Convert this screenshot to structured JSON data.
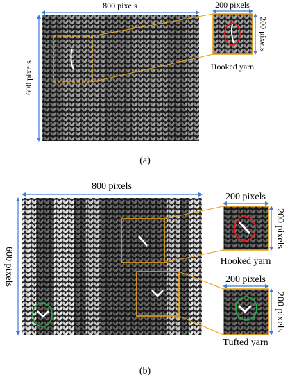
{
  "panels": [
    {
      "label": "(a)",
      "width_label": "800 pixels",
      "height_label": "600 pixels",
      "crops": [
        {
          "width_label": "200 pixels",
          "height_label": "200 pixels",
          "caption": "Hooked yarn"
        }
      ]
    },
    {
      "label": "(b)",
      "width_label": "800 pixels",
      "height_label": "600 pixels",
      "crops": [
        {
          "width_label": "200 pixels",
          "height_label": "200 pixels",
          "caption": "Hooked yarn"
        },
        {
          "width_label": "200 pixels",
          "height_label": "200 pixels",
          "caption": "Tufted yarn"
        }
      ]
    }
  ]
}
